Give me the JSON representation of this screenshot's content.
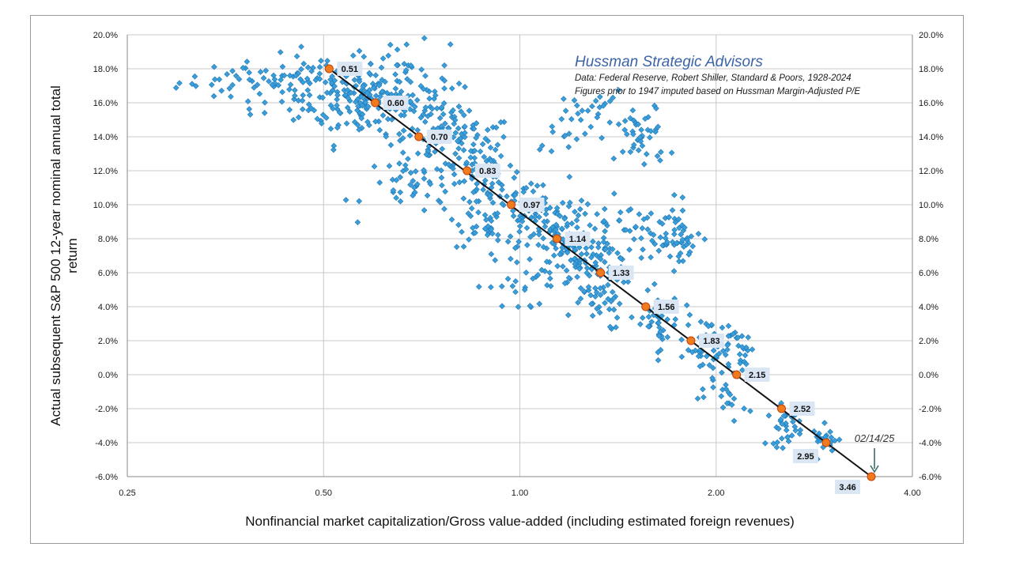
{
  "chart_data": {
    "type": "scatter",
    "title": "",
    "xlabel": "Nonfinancial market capitalization/Gross value-added (including estimated foreign revenues)",
    "ylabel": "Actual subsequent S&P 500 12-year nominal annual total return",
    "x_scale": "log2",
    "xlim": [
      0.25,
      4.0
    ],
    "ylim": [
      -6,
      20
    ],
    "x_ticks": [
      "0.25",
      "0.50",
      "1.00",
      "2.00",
      "4.00"
    ],
    "y_ticks": [
      "20.0%",
      "18.0%",
      "16.0%",
      "14.0%",
      "12.0%",
      "10.0%",
      "8.0%",
      "6.0%",
      "4.0%",
      "2.0%",
      "0.0%",
      "-2.0%",
      "-4.0%",
      "-6.0%"
    ],
    "grid": {
      "x": true,
      "y": true
    },
    "annotation": {
      "title": "Hussman Strategic Advisors",
      "lines": [
        "Data: Federal Reserve, Robert Shiller, Standard & Poors, 1928-2024",
        "Figures prior to 1947 imputed based on Hussman Margin-Adjusted P/E"
      ]
    },
    "marker_date": "02/14/25",
    "fit_points": [
      {
        "label": "0.51",
        "x": 0.51,
        "y": 18
      },
      {
        "label": "0.60",
        "x": 0.6,
        "y": 16
      },
      {
        "label": "0.70",
        "x": 0.7,
        "y": 14
      },
      {
        "label": "0.83",
        "x": 0.83,
        "y": 12
      },
      {
        "label": "0.97",
        "x": 0.97,
        "y": 10
      },
      {
        "label": "1.14",
        "x": 1.14,
        "y": 8
      },
      {
        "label": "1.33",
        "x": 1.33,
        "y": 6
      },
      {
        "label": "1.56",
        "x": 1.56,
        "y": 4
      },
      {
        "label": "1.83",
        "x": 1.83,
        "y": 2
      },
      {
        "label": "2.15",
        "x": 2.15,
        "y": 0
      },
      {
        "label": "2.52",
        "x": 2.52,
        "y": -2
      },
      {
        "label": "2.95",
        "x": 2.95,
        "y": -4
      },
      {
        "label": "3.46",
        "x": 3.46,
        "y": -6
      }
    ],
    "scatter_clusters": [
      {
        "x": 0.4,
        "y": 17.2,
        "sx": 0.05,
        "sy": 0.6,
        "n": 45
      },
      {
        "x": 0.5,
        "y": 16.8,
        "sx": 0.06,
        "sy": 1.0,
        "n": 90
      },
      {
        "x": 0.58,
        "y": 16.0,
        "sx": 0.06,
        "sy": 1.2,
        "n": 90
      },
      {
        "x": 0.66,
        "y": 17.0,
        "sx": 0.06,
        "sy": 1.4,
        "n": 60
      },
      {
        "x": 0.75,
        "y": 14.5,
        "sx": 0.06,
        "sy": 1.2,
        "n": 70
      },
      {
        "x": 0.85,
        "y": 13.0,
        "sx": 0.06,
        "sy": 1.2,
        "n": 60
      },
      {
        "x": 0.7,
        "y": 11.0,
        "sx": 0.06,
        "sy": 0.8,
        "n": 40
      },
      {
        "x": 0.9,
        "y": 10.0,
        "sx": 0.06,
        "sy": 1.2,
        "n": 70
      },
      {
        "x": 1.05,
        "y": 9.0,
        "sx": 0.07,
        "sy": 1.3,
        "n": 80
      },
      {
        "x": 1.2,
        "y": 7.5,
        "sx": 0.07,
        "sy": 1.4,
        "n": 80
      },
      {
        "x": 1.35,
        "y": 8.5,
        "sx": 0.08,
        "sy": 1.2,
        "n": 45
      },
      {
        "x": 1.3,
        "y": 5.0,
        "sx": 0.07,
        "sy": 1.2,
        "n": 60
      },
      {
        "x": 1.0,
        "y": 5.2,
        "sx": 0.05,
        "sy": 0.8,
        "n": 20
      },
      {
        "x": 1.65,
        "y": 8.0,
        "sx": 0.09,
        "sy": 1.2,
        "n": 50
      },
      {
        "x": 1.8,
        "y": 8.0,
        "sx": 0.07,
        "sy": 0.6,
        "n": 20
      },
      {
        "x": 1.55,
        "y": 14.0,
        "sx": 0.07,
        "sy": 1.0,
        "n": 40
      },
      {
        "x": 1.3,
        "y": 15.5,
        "sx": 0.07,
        "sy": 0.6,
        "n": 25
      },
      {
        "x": 1.15,
        "y": 14.2,
        "sx": 0.05,
        "sy": 0.5,
        "n": 12
      },
      {
        "x": 1.62,
        "y": 3.0,
        "sx": 0.07,
        "sy": 0.9,
        "n": 40
      },
      {
        "x": 1.95,
        "y": 1.5,
        "sx": 0.08,
        "sy": 0.9,
        "n": 45
      },
      {
        "x": 2.2,
        "y": 1.2,
        "sx": 0.08,
        "sy": 0.8,
        "n": 30
      },
      {
        "x": 2.1,
        "y": -1.5,
        "sx": 0.06,
        "sy": 0.6,
        "n": 15
      },
      {
        "x": 2.55,
        "y": -3.0,
        "sx": 0.08,
        "sy": 0.6,
        "n": 35
      },
      {
        "x": 2.95,
        "y": -3.8,
        "sx": 0.07,
        "sy": 0.4,
        "n": 20
      }
    ],
    "colors": {
      "scatter": "#3a9ed8",
      "scatter_edge": "#1f77b8",
      "fit_line": "#111111",
      "fit_point": "#f07b1c",
      "label_bg": "#dbe6f4",
      "annotation_title": "#3b63a8"
    }
  }
}
